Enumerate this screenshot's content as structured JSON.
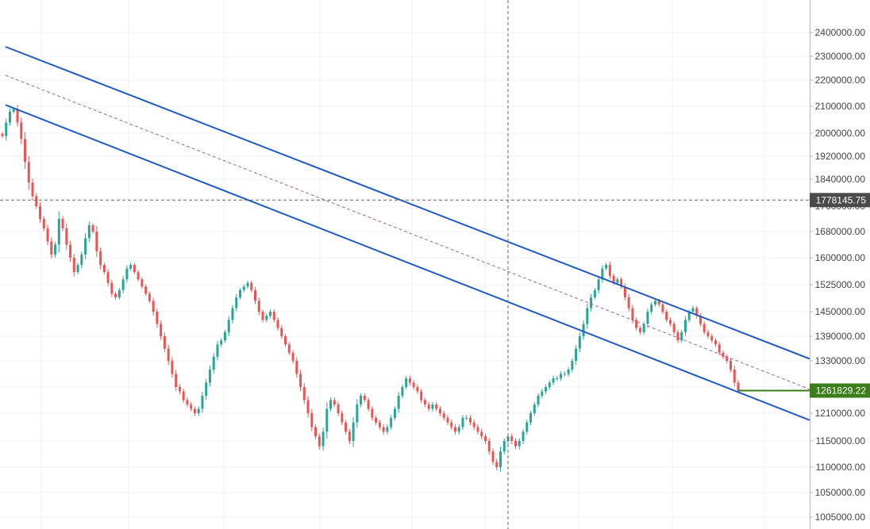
{
  "chart_data": {
    "type": "candlestick",
    "title": "",
    "xlabel": "",
    "ylabel": "",
    "ylim": [
      980000,
      2480000
    ],
    "grid": true,
    "y_ticks": [
      "2400000.00",
      "2300000.00",
      "2200000.00",
      "2100000.00",
      "2000000.00",
      "1920000.00",
      "1840000.00",
      "1760000.00",
      "1680000.00",
      "1600000.00",
      "1525000.00",
      "1450000.00",
      "1390000.00",
      "1330000.00",
      "1270000.00",
      "1210000.00",
      "1150000.00",
      "1100000.00",
      "1050000.00",
      "1005000.00"
    ],
    "crosshair": {
      "price_label": "1778145.75",
      "price": 1778145.75
    },
    "last_price": {
      "label": "1261829.22",
      "value": 1261829.22,
      "color": "#3a7d1a"
    },
    "candle_colors": {
      "up": "#26a69a",
      "down": "#ef5350"
    },
    "close_series": [
      1990000,
      2040000,
      2080000,
      2090000,
      2040000,
      1980000,
      1900000,
      1830000,
      1790000,
      1760000,
      1720000,
      1690000,
      1650000,
      1610000,
      1640000,
      1720000,
      1690000,
      1640000,
      1600000,
      1560000,
      1580000,
      1610000,
      1660000,
      1700000,
      1680000,
      1620000,
      1580000,
      1560000,
      1530000,
      1500000,
      1490000,
      1510000,
      1540000,
      1570000,
      1580000,
      1560000,
      1540000,
      1520000,
      1500000,
      1480000,
      1450000,
      1420000,
      1390000,
      1360000,
      1330000,
      1300000,
      1270000,
      1260000,
      1240000,
      1230000,
      1220000,
      1210000,
      1220000,
      1250000,
      1280000,
      1310000,
      1340000,
      1370000,
      1380000,
      1400000,
      1430000,
      1460000,
      1490000,
      1510000,
      1520000,
      1530000,
      1510000,
      1480000,
      1450000,
      1430000,
      1440000,
      1450000,
      1430000,
      1410000,
      1390000,
      1370000,
      1350000,
      1330000,
      1300000,
      1270000,
      1240000,
      1210000,
      1180000,
      1160000,
      1140000,
      1170000,
      1220000,
      1240000,
      1230000,
      1210000,
      1190000,
      1170000,
      1150000,
      1190000,
      1230000,
      1250000,
      1240000,
      1220000,
      1200000,
      1190000,
      1180000,
      1170000,
      1180000,
      1200000,
      1220000,
      1250000,
      1270000,
      1290000,
      1280000,
      1270000,
      1260000,
      1240000,
      1230000,
      1220000,
      1230000,
      1220000,
      1210000,
      1200000,
      1190000,
      1180000,
      1170000,
      1180000,
      1200000,
      1200000,
      1190000,
      1180000,
      1170000,
      1160000,
      1150000,
      1130000,
      1110000,
      1100000,
      1130000,
      1150000,
      1160000,
      1150000,
      1140000,
      1150000,
      1170000,
      1190000,
      1210000,
      1230000,
      1250000,
      1260000,
      1270000,
      1280000,
      1290000,
      1290000,
      1300000,
      1300000,
      1310000,
      1330000,
      1360000,
      1390000,
      1420000,
      1460000,
      1490000,
      1510000,
      1540000,
      1570000,
      1580000,
      1550000,
      1530000,
      1540000,
      1520000,
      1490000,
      1460000,
      1430000,
      1410000,
      1400000,
      1420000,
      1450000,
      1470000,
      1480000,
      1470000,
      1450000,
      1430000,
      1420000,
      1400000,
      1380000,
      1400000,
      1430000,
      1450000,
      1460000,
      1440000,
      1420000,
      1400000,
      1390000,
      1380000,
      1370000,
      1350000,
      1340000,
      1330000,
      1310000,
      1280000,
      1262000
    ],
    "annotations": [
      {
        "type": "parallel_channel",
        "upper": [
          [
            0,
            2340000
          ],
          [
            1,
            1335000
          ]
        ],
        "lower": [
          [
            0,
            2105000
          ],
          [
            1,
            1195000
          ]
        ],
        "midline": [
          [
            0,
            2220000
          ],
          [
            1,
            1265000
          ]
        ],
        "color": "#1e5bc6",
        "mid_color": "#9c5fa8"
      }
    ]
  }
}
